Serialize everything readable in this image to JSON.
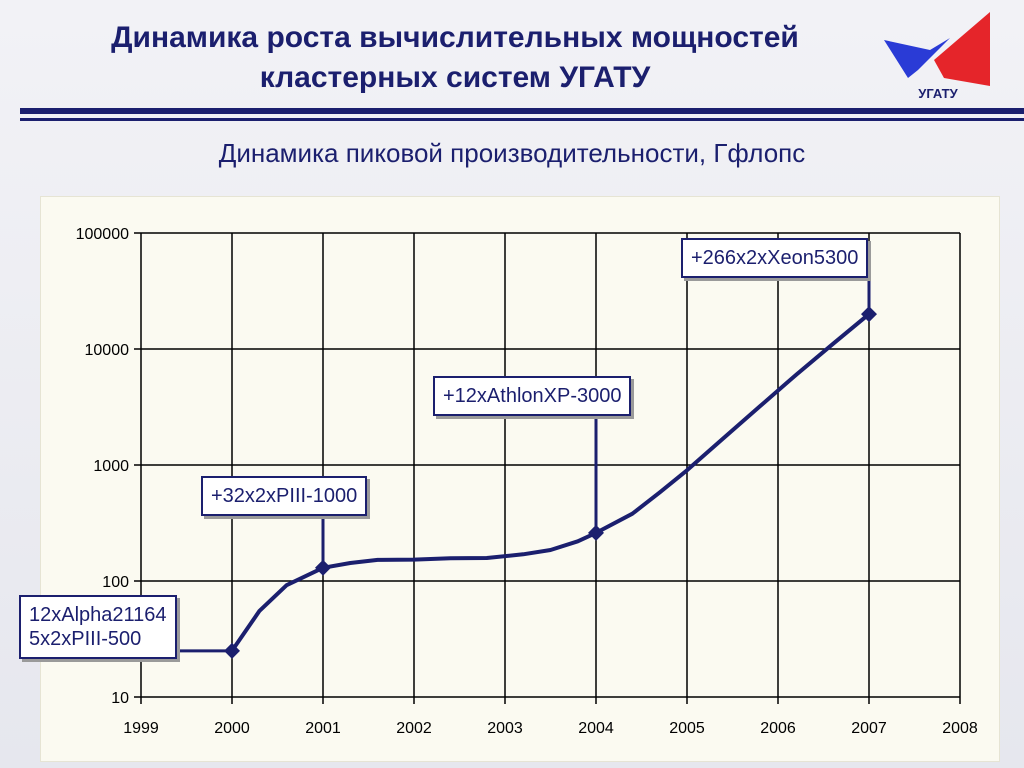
{
  "header": {
    "title_line1": "Динамика роста вычислительных мощностей",
    "title_line2": "кластерных систем УГАТУ",
    "logo_text": "УГАТУ"
  },
  "colors": {
    "title": "#1b1f6e",
    "line": "#1b1f6e",
    "logo_red": "#e5252a",
    "logo_blue": "#2a3bd6",
    "panel_bg": "#fbfaf1"
  },
  "chart_data": {
    "type": "line",
    "title": "Динамика пиковой производительности, Гфлопс",
    "xlabel": "",
    "ylabel": "",
    "y_scale": "log",
    "ylim": [
      10,
      100000
    ],
    "xlim": [
      1999,
      2008
    ],
    "grid": true,
    "x_ticks": [
      "1999",
      "2000",
      "2001",
      "2002",
      "2003",
      "2004",
      "2005",
      "2006",
      "2007",
      "2008"
    ],
    "y_ticks": [
      "10",
      "100",
      "1000",
      "10000",
      "100000"
    ],
    "series": [
      {
        "name": "",
        "color": "#1b1f6e",
        "markers": [
          {
            "x": 2000,
            "y": 25
          },
          {
            "x": 2001,
            "y": 130
          },
          {
            "x": 2004,
            "y": 260
          },
          {
            "x": 2007,
            "y": 20000
          }
        ],
        "curve": [
          {
            "x": 2000,
            "y": 25
          },
          {
            "x": 2000.3,
            "y": 55
          },
          {
            "x": 2000.6,
            "y": 92
          },
          {
            "x": 2001,
            "y": 130
          },
          {
            "x": 2001.3,
            "y": 143
          },
          {
            "x": 2001.6,
            "y": 152
          },
          {
            "x": 2002,
            "y": 153
          },
          {
            "x": 2002.4,
            "y": 157
          },
          {
            "x": 2002.8,
            "y": 158
          },
          {
            "x": 2003.2,
            "y": 170
          },
          {
            "x": 2003.5,
            "y": 185
          },
          {
            "x": 2003.8,
            "y": 220
          },
          {
            "x": 2004,
            "y": 260
          },
          {
            "x": 2004.4,
            "y": 380
          },
          {
            "x": 2004.7,
            "y": 580
          },
          {
            "x": 2005,
            "y": 900
          },
          {
            "x": 2005.4,
            "y": 1700
          },
          {
            "x": 2005.8,
            "y": 3200
          },
          {
            "x": 2006.2,
            "y": 6000
          },
          {
            "x": 2006.6,
            "y": 11000
          },
          {
            "x": 2007,
            "y": 20000
          }
        ]
      }
    ],
    "annotations": [
      {
        "lines": [
          "12xAlpha21164",
          "5x2xPIII-500"
        ],
        "target_x": 2000,
        "target_y": 25
      },
      {
        "lines": [
          "+32x2xPIII-1000"
        ],
        "target_x": 2001,
        "target_y": 130
      },
      {
        "lines": [
          "+12xAthlonXP-3000"
        ],
        "target_x": 2004,
        "target_y": 260
      },
      {
        "lines": [
          "+266x2xXeon5300"
        ],
        "target_x": 2007,
        "target_y": 20000
      }
    ]
  }
}
